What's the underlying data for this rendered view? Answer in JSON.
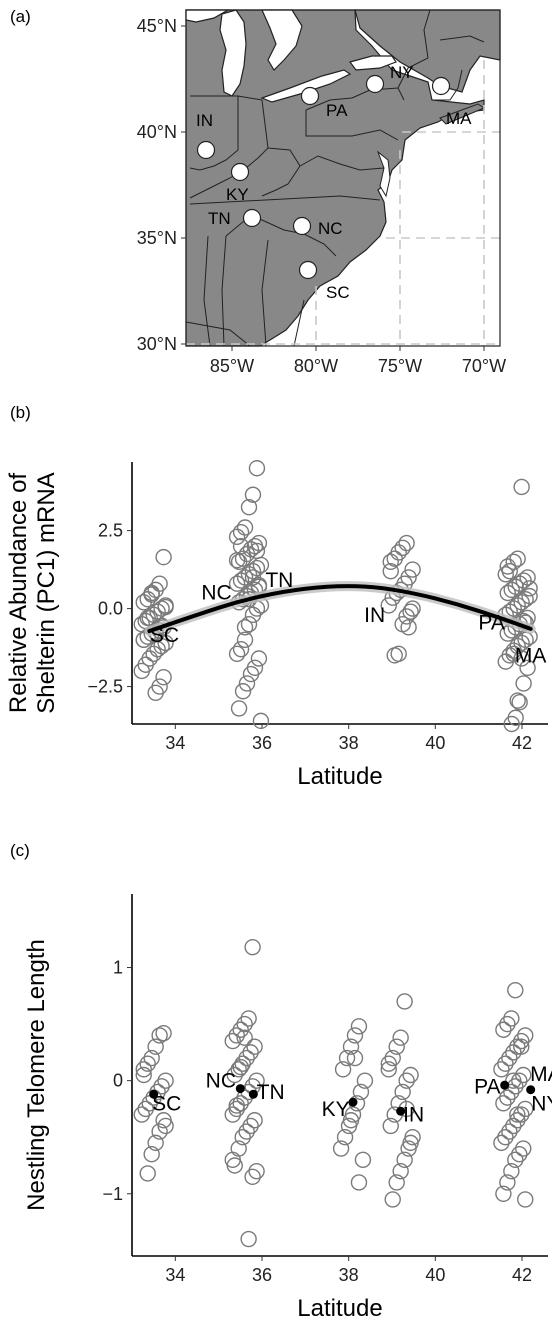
{
  "panels": {
    "a": "(a)",
    "b": "(b)",
    "c": "(c)"
  },
  "map": {
    "lat_ticks": [
      "45°N",
      "40°N",
      "35°N",
      "30°N"
    ],
    "lon_ticks": [
      "85°W",
      "80°W",
      "75°W",
      "70°W"
    ],
    "sites": [
      {
        "label": "IN",
        "lon": -86.6,
        "lat": 39.2
      },
      {
        "label": "KY",
        "lon": -84.7,
        "lat": 38.1
      },
      {
        "label": "TN",
        "lon": -83.9,
        "lat": 35.9
      },
      {
        "label": "NC",
        "lon": -79.8,
        "lat": 35.6
      },
      {
        "label": "SC",
        "lon": -80.4,
        "lat": 33.5
      },
      {
        "label": "PA",
        "lon": -80.6,
        "lat": 41.7
      },
      {
        "label": "NY",
        "lon": -76.5,
        "lat": 42.4
      },
      {
        "label": "MA",
        "lon": -72.6,
        "lat": 42.3
      }
    ],
    "colors": {
      "land": "#888888",
      "water": "#ffffff",
      "border": "#222222",
      "grid": "#cccccc"
    }
  },
  "chart_data": [
    {
      "type": "scatter",
      "xlabel": "Latitude",
      "ylabel_lines": [
        "Relative Abundance of",
        "Shelterin (PC1) mRNA"
      ],
      "xlim": [
        33.0,
        42.6
      ],
      "ylim": [
        -3.7,
        4.7
      ],
      "xticks": [
        34,
        36,
        38,
        40,
        42
      ],
      "yticks": [
        2.5,
        0.0,
        -2.5
      ],
      "ytick_labels": [
        "2.5",
        "0.0",
        "−2.5"
      ],
      "fit": {
        "kind": "quadratic",
        "x": [
          33.4,
          34.5,
          35.5,
          36.5,
          37.5,
          38.5,
          39.5,
          40.5,
          41.5,
          42.2
        ],
        "y": [
          -0.72,
          -0.2,
          0.25,
          0.55,
          0.72,
          0.72,
          0.5,
          0.15,
          -0.3,
          -0.65
        ]
      },
      "site_labels": [
        {
          "label": "SC",
          "x": 33.75,
          "y": -0.85
        },
        {
          "label": "NC",
          "x": 34.95,
          "y": 0.52
        },
        {
          "label": "TN",
          "x": 36.4,
          "y": 0.92
        },
        {
          "label": "IN",
          "x": 38.6,
          "y": -0.2
        },
        {
          "label": "PA",
          "x": 41.3,
          "y": -0.45
        },
        {
          "label": "MA",
          "x": 42.2,
          "y": -1.5
        }
      ],
      "groups": [
        {
          "x": 33.5,
          "y": [
            1.65,
            0.8,
            0.6,
            0.45,
            0.3,
            0.2,
            0.1,
            0.0,
            -0.1,
            -0.2,
            -0.3,
            -0.4,
            -0.5,
            -0.6,
            -0.7,
            -0.75,
            -0.8,
            -0.9,
            -1.0,
            -1.1,
            -1.2,
            -1.3,
            -1.45,
            -1.6,
            -1.8,
            -2.0,
            -2.2,
            -2.5,
            -2.7,
            0.5,
            -0.3,
            -1.0,
            0.05,
            -0.55
          ]
        },
        {
          "x": 35.7,
          "y": [
            4.5,
            3.65,
            3.25,
            2.6,
            2.45,
            2.3,
            2.1,
            2.0,
            1.9,
            1.75,
            1.6,
            1.5,
            1.4,
            1.3,
            1.2,
            1.1,
            1.0,
            0.9,
            0.8,
            0.7,
            0.6,
            0.5,
            0.4,
            0.3,
            0.2,
            0.1,
            0.0,
            -0.2,
            -0.5,
            -1.0,
            -1.3,
            -1.45,
            -1.6,
            -1.9,
            -2.1,
            -2.4,
            -2.65,
            -3.2,
            -3.6,
            1.85,
            1.0,
            0.3,
            -0.6,
            2.0,
            1.55,
            0.75
          ]
        },
        {
          "x": 39.2,
          "y": [
            2.1,
            1.95,
            1.8,
            1.6,
            1.5,
            1.25,
            1.0,
            0.8,
            0.6,
            0.5,
            0.35,
            0.1,
            -0.1,
            -0.25,
            -0.5,
            -1.45,
            -1.5,
            1.2,
            0.0,
            -0.6
          ]
        },
        {
          "x": 41.9,
          "y": [
            3.9,
            1.6,
            1.5,
            1.2,
            1.1,
            1.0,
            0.9,
            0.8,
            0.7,
            0.6,
            0.5,
            0.4,
            0.3,
            0.2,
            0.1,
            0.0,
            -0.1,
            -0.2,
            -0.3,
            -0.4,
            -0.5,
            -0.6,
            -0.7,
            -0.8,
            -0.9,
            -1.0,
            -1.1,
            -1.2,
            -1.35,
            -1.5,
            -1.7,
            -1.9,
            -2.4,
            -3.0,
            -3.5,
            -3.7,
            1.35,
            0.65,
            -0.45,
            -1.6,
            -2.95,
            -1.45
          ]
        }
      ]
    },
    {
      "type": "scatter",
      "xlabel": "Latitude",
      "ylabel": "Nestling Telomere Length",
      "xlim": [
        33.0,
        42.6
      ],
      "ylim": [
        -1.55,
        1.65
      ],
      "xticks": [
        34,
        36,
        38,
        40,
        42
      ],
      "yticks": [
        1,
        0,
        -1
      ],
      "ytick_labels": [
        "1",
        "0",
        "−1"
      ],
      "site_labels": [
        {
          "label": "SC",
          "x": 33.8,
          "y": -0.2
        },
        {
          "label": "NC",
          "x": 35.05,
          "y": 0.0
        },
        {
          "label": "TN",
          "x": 36.2,
          "y": -0.1
        },
        {
          "label": "KY",
          "x": 37.7,
          "y": -0.25
        },
        {
          "label": "IN",
          "x": 39.5,
          "y": -0.3
        },
        {
          "label": "PA",
          "x": 41.2,
          "y": -0.05
        },
        {
          "label": "MA",
          "x": 42.55,
          "y": 0.06
        },
        {
          "label": "NY",
          "x": 42.55,
          "y": -0.2
        }
      ],
      "means": [
        {
          "x": 33.5,
          "y": -0.12
        },
        {
          "x": 35.5,
          "y": -0.07
        },
        {
          "x": 35.8,
          "y": -0.12
        },
        {
          "x": 38.1,
          "y": -0.19
        },
        {
          "x": 39.2,
          "y": -0.27
        },
        {
          "x": 41.6,
          "y": -0.04
        },
        {
          "x": 42.2,
          "y": -0.08
        }
      ],
      "groups": [
        {
          "x": 33.5,
          "y": [
            0.42,
            0.4,
            0.3,
            0.2,
            0.15,
            0.05,
            0.0,
            -0.05,
            -0.1,
            -0.15,
            -0.2,
            -0.25,
            -0.3,
            -0.35,
            -0.45,
            -0.55,
            -0.65,
            -0.82,
            0.1,
            -0.4
          ]
        },
        {
          "x": 35.6,
          "y": [
            1.18,
            0.55,
            0.5,
            0.45,
            0.4,
            0.35,
            0.3,
            0.25,
            0.2,
            0.15,
            0.1,
            0.05,
            0.0,
            -0.05,
            -0.1,
            -0.15,
            -0.2,
            -0.25,
            -0.3,
            -0.35,
            -0.4,
            -0.45,
            -0.5,
            -0.6,
            -0.75,
            -0.8,
            -0.85,
            -1.4,
            0.38,
            0.12,
            -0.22,
            -0.7
          ]
        },
        {
          "x": 38.1,
          "y": [
            0.48,
            0.4,
            0.3,
            0.2,
            0.1,
            0.0,
            -0.1,
            -0.2,
            -0.3,
            -0.4,
            -0.5,
            -0.6,
            -0.7,
            -0.9,
            0.2,
            -0.35
          ]
        },
        {
          "x": 39.2,
          "y": [
            0.7,
            0.38,
            0.3,
            0.2,
            0.1,
            0.05,
            0.0,
            -0.1,
            -0.2,
            -0.3,
            -0.4,
            -0.5,
            -0.6,
            -0.7,
            -0.8,
            -0.9,
            -1.05,
            0.15,
            -0.55,
            -0.25
          ]
        },
        {
          "x": 41.8,
          "y": [
            0.8,
            0.55,
            0.5,
            0.45,
            0.4,
            0.35,
            0.3,
            0.25,
            0.2,
            0.15,
            0.1,
            0.05,
            0.0,
            -0.05,
            -0.1,
            -0.15,
            -0.2,
            -0.25,
            -0.3,
            -0.35,
            -0.4,
            -0.45,
            -0.5,
            -0.55,
            -0.6,
            -0.65,
            -0.7,
            -0.8,
            -0.9,
            -1.0,
            -1.05,
            0.3,
            -0.3,
            0.0
          ]
        }
      ]
    }
  ]
}
